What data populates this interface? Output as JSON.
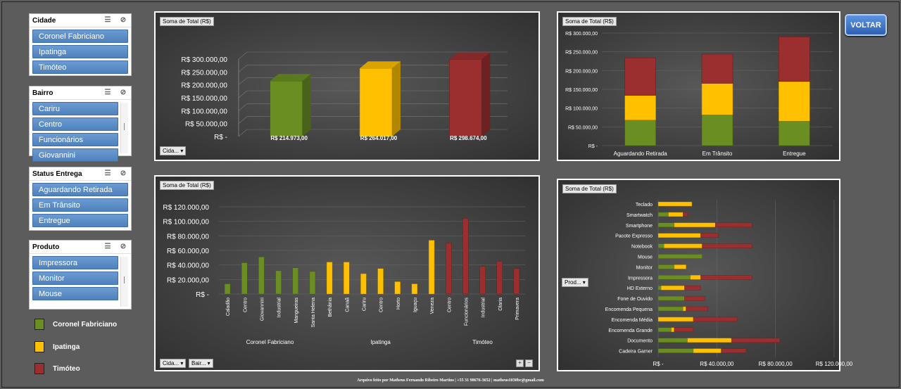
{
  "slicers": {
    "cidade": {
      "title": "Cidade",
      "items": [
        "Coronel Fabriciano",
        "Ipatinga",
        "Timóteo"
      ]
    },
    "bairro": {
      "title": "Bairro",
      "items": [
        "Cariru",
        "Centro",
        "Funcionários",
        "Giovannini"
      ]
    },
    "status": {
      "title": "Status Entrega",
      "items": [
        "Aguardando Retirada",
        "Em Trânsito",
        "Entregue"
      ]
    },
    "produto": {
      "title": "Produto",
      "items": [
        "Impressora",
        "Monitor",
        "Mouse"
      ]
    }
  },
  "legend": [
    {
      "label": "Coronel Fabriciano",
      "color": "#6b8e23"
    },
    {
      "label": "Ipatinga",
      "color": "#ffc000"
    },
    {
      "label": "Timóteo",
      "color": "#9b2f2f"
    }
  ],
  "voltar": "VOLTAR",
  "footer": "Arquivo feito por Matheus Fernando Ribeiro Martins | +55 31 98676-3652 | matheus1030br@gmail.com",
  "filter_buttons": {
    "cidade": "Cida...",
    "bairro": "Bair...",
    "produto": "Prod..."
  },
  "zoom": {
    "plus": "+",
    "minus": "−"
  },
  "chart_data": [
    {
      "type": "bar",
      "title": "Soma de Total (R$)",
      "categories": [
        "Coronel Fabriciano",
        "Ipatinga",
        "Timóteo"
      ],
      "values": [
        214973,
        264017,
        298674
      ],
      "data_labels": [
        "R$ 214.973,00",
        "R$ 264.017,00",
        "R$ 298.674,00"
      ],
      "colors": [
        "#6b8e23",
        "#ffc000",
        "#9b2f2f"
      ],
      "y_ticks": [
        "R$ 300.000,00",
        "R$ 250.000,00",
        "R$ 200.000,00",
        "R$ 150.000,00",
        "R$ 100.000,00",
        "R$ 50.000,00",
        "R$ -"
      ],
      "ylim": [
        0,
        300000
      ]
    },
    {
      "type": "bar",
      "stacked": true,
      "title": "Soma de Total (R$)",
      "categories": [
        "Aguardando Retirada",
        "Em Trânsito",
        "Entregue"
      ],
      "series": [
        {
          "values": [
            68000,
            82000,
            65000
          ],
          "color": "#6b8e23"
        },
        {
          "values": [
            66000,
            84000,
            106000
          ],
          "color": "#ffc000"
        },
        {
          "values": [
            100000,
            78000,
            119000
          ],
          "color": "#9b2f2f"
        }
      ],
      "y_ticks": [
        "R$ 300.000,00",
        "R$ 250.000,00",
        "R$ 200.000,00",
        "R$ 150.000,00",
        "R$ 100.000,00",
        "R$ 50.000,00",
        "R$ -"
      ],
      "ylim": [
        0,
        300000
      ]
    },
    {
      "type": "bar",
      "title": "Soma de Total (R$)",
      "groups": [
        {
          "label": "Coronel Fabriciano",
          "color": "#6b8e23",
          "categories": [
            "Caladão",
            "Centro",
            "Giovannini",
            "Industrial",
            "Mangueiras",
            "Santa Helena"
          ],
          "values": [
            14000,
            43000,
            51000,
            32000,
            36000,
            31000
          ]
        },
        {
          "label": "Ipatinga",
          "color": "#ffc000",
          "categories": [
            "Bethânia",
            "Canaã",
            "Cariru",
            "Centro",
            "Horto",
            "Iguaçu",
            "Veneza"
          ],
          "values": [
            44000,
            44000,
            28000,
            35000,
            17000,
            14000,
            74000
          ]
        },
        {
          "label": "Timóteo",
          "color": "#9b2f2f",
          "categories": [
            "Centro",
            "Funcionários",
            "Industrial",
            "Olaria",
            "Primavera"
          ],
          "values": [
            70000,
            104000,
            38000,
            45000,
            35000
          ]
        }
      ],
      "y_ticks": [
        "R$ 120.000,00",
        "R$ 100.000,00",
        "R$ 80.000,00",
        "R$ 60.000,00",
        "R$ 40.000,00",
        "R$ 20.000,00",
        "R$ -"
      ],
      "ylim": [
        0,
        120000
      ]
    },
    {
      "type": "bar",
      "horizontal": true,
      "stacked": true,
      "title": "Soma de Total (R$)",
      "categories": [
        "Teclado",
        "Smartwatch",
        "Smartphone",
        "Pacote Expresso",
        "Notebook",
        "Mouse",
        "Monitor",
        "Impressora",
        "HD Externo",
        "Fone de Ouvido",
        "Encomenda Pequena",
        "Encomenda Média",
        "Encomenda Grande",
        "Documento",
        "Cadeira Gamer"
      ],
      "series": [
        {
          "values": [
            0,
            7000,
            11000,
            0,
            4000,
            30000,
            11000,
            22000,
            2000,
            18000,
            17000,
            0,
            9000,
            20000,
            24000
          ],
          "color": "#6b8e23"
        },
        {
          "values": [
            23000,
            10000,
            28000,
            29000,
            26000,
            0,
            8000,
            7000,
            16000,
            0,
            2000,
            24000,
            2000,
            30000,
            19000
          ],
          "color": "#ffc000"
        },
        {
          "values": [
            0,
            3000,
            25000,
            12000,
            34000,
            0,
            0,
            35000,
            11000,
            14000,
            15000,
            30000,
            13000,
            33000,
            17000
          ],
          "color": "#9b2f2f"
        }
      ],
      "x_ticks": [
        "R$ -",
        "R$ 40.000,00",
        "R$ 80.000,00",
        "R$ 120.000,00"
      ],
      "xlim": [
        0,
        120000
      ]
    }
  ]
}
